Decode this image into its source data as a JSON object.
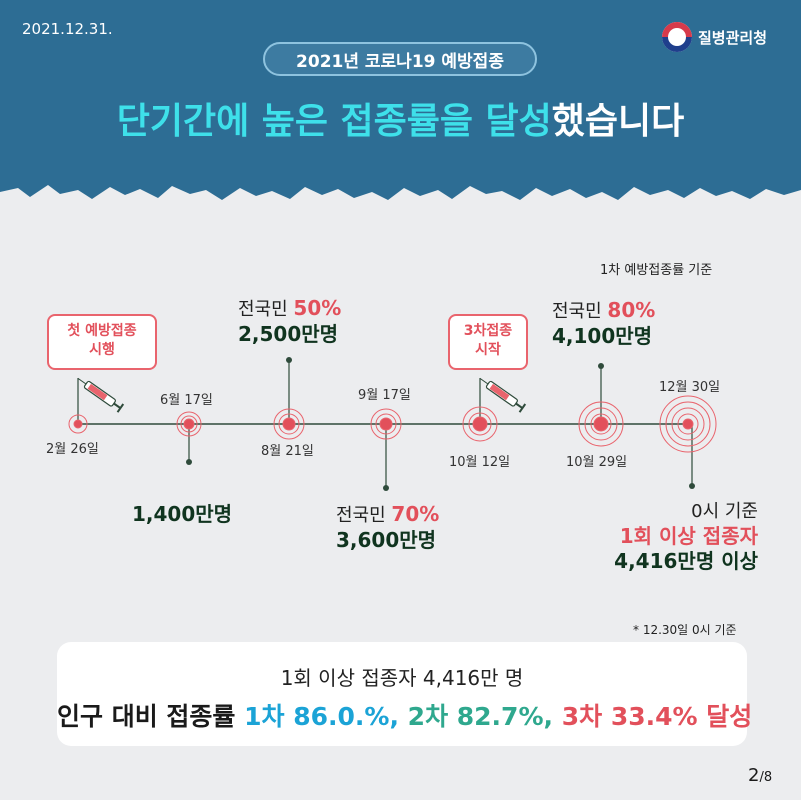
{
  "header": {
    "date": "2021.12.31.",
    "agency": "질병관리청",
    "pill": "2021년 코로나19 예방접종",
    "headline_highlight": "단기간에 높은 접종률을 달성",
    "headline_rest": "했습니다"
  },
  "basis": "1차 예방접종률 기준",
  "bubbles": {
    "first": "첫 예방접종\n시행",
    "third": "3차접종\n시작"
  },
  "dates": {
    "d1": "2월 26일",
    "d2": "6월 17일",
    "d3": "8월 21일",
    "d4": "9월 17일",
    "d5": "10월 12일",
    "d6": "10월 29일",
    "d7": "12월 30일"
  },
  "milestones": {
    "m1": "1,400만명",
    "m2_prefix": "전국민 ",
    "m2_pct": "50%",
    "m2_count": "2,500만명",
    "m3_prefix": "전국민 ",
    "m3_pct": "70%",
    "m3_count": "3,600만명",
    "m4_prefix": "전국민 ",
    "m4_pct": "80%",
    "m4_count": "4,100만명",
    "m5_time": "0시 기준",
    "m5_label": "1회 이상 접종자",
    "m5_count": "4,416만명 이상"
  },
  "note": "* 12.30일 0시 기준",
  "summary": {
    "line1": "1회 이상 접종자 4,416만 명",
    "line2_prefix": "인구 대비 접종률 ",
    "dose1": "1차 86.0.%,",
    "dose2": "2차 82.7%,",
    "dose3": "3차 33.4%",
    "suffix": " 달성"
  },
  "page": {
    "current": "2",
    "total": "/8"
  },
  "colors": {
    "header_bg": "#2d6d94",
    "highlight": "#3ee0ea",
    "accent_red": "#e2505b",
    "dark_green": "#10341f",
    "blue": "#1ba3d6",
    "green": "#2fa88e"
  }
}
